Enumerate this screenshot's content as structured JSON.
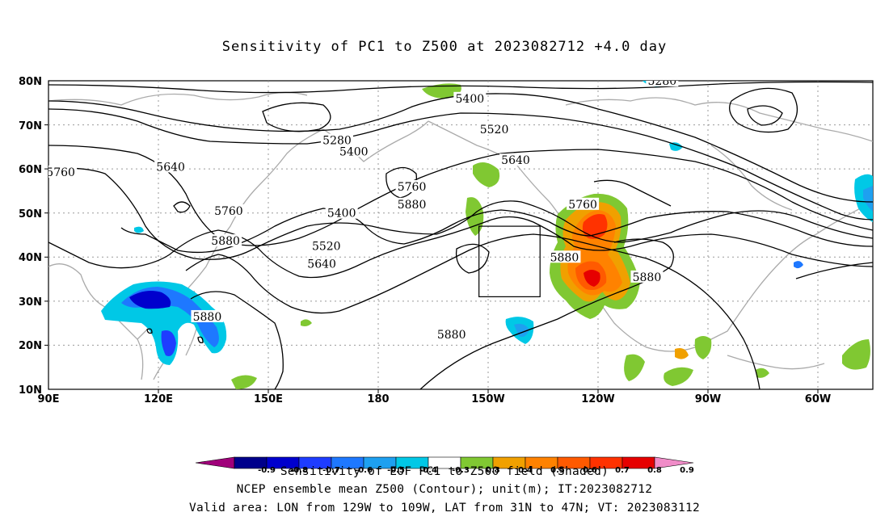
{
  "title": "Sensitivity of PC1 to Z500 at 2023082712 +4.0 day",
  "axes": {
    "lon_ticks": [
      "90E",
      "120E",
      "150E",
      "180",
      "150W",
      "120W",
      "90W",
      "60W"
    ],
    "lat_ticks": [
      "80N",
      "70N",
      "60N",
      "50N",
      "40N",
      "30N",
      "20N",
      "10N"
    ]
  },
  "contour_labels": [
    {
      "text": "5280",
      "lon": -175.5,
      "lat": 66.5
    },
    {
      "text": "5400",
      "lon": -170,
      "lat": 64.0
    },
    {
      "text": "5640",
      "lon": 130,
      "lat": 60.5
    },
    {
      "text": "5760",
      "lon": 94,
      "lat": 59.3
    },
    {
      "text": "5760",
      "lon": 149,
      "lat": 50.5
    },
    {
      "text": "5880",
      "lon": 148,
      "lat": 43.7
    },
    {
      "text": "5400",
      "lon": -174,
      "lat": 50.0
    },
    {
      "text": "5520",
      "lon": -179,
      "lat": 42.5
    },
    {
      "text": "5640",
      "lon": -180.5,
      "lat": 38.5
    },
    {
      "text": "5880",
      "lon": 142,
      "lat": 26.5
    },
    {
      "text": "5400",
      "lon": -132,
      "lat": 76.0
    },
    {
      "text": "5520",
      "lon": -124,
      "lat": 69.0
    },
    {
      "text": "5640",
      "lon": -117,
      "lat": 62.0
    },
    {
      "text": "5760",
      "lon": -151,
      "lat": 56.0
    },
    {
      "text": "5880",
      "lon": -151,
      "lat": 52.0
    },
    {
      "text": "5760",
      "lon": -95,
      "lat": 52.0
    },
    {
      "text": "5880",
      "lon": -101,
      "lat": 40.0
    },
    {
      "text": "5880",
      "lon": -138,
      "lat": 22.5
    },
    {
      "text": "5880",
      "lon": -74,
      "lat": 35.5
    },
    {
      "text": "5280",
      "lon": -69,
      "lat": 80.0
    }
  ],
  "valid_box": {
    "lon_min": -129,
    "lon_max": -109,
    "lat_min": 31,
    "lat_max": 47
  },
  "colorbar": {
    "labels": [
      "-0.9",
      "-0.8",
      "-0.7",
      "-0.6",
      "-0.5",
      "-0.4",
      "-0.3",
      "0.3",
      "0.4",
      "0.5",
      "0.6",
      "0.7",
      "0.8",
      "0.9"
    ],
    "colors": [
      "#a0007a",
      "#00008b",
      "#0000cd",
      "#1e3cff",
      "#1e78ff",
      "#1ea0f0",
      "#00c8e6",
      "#ffffff",
      "#80c832",
      "#f0a000",
      "#ff8200",
      "#ff5a00",
      "#ff3200",
      "#e60000",
      "#f08cc8"
    ]
  },
  "footer": {
    "line1": "Sensitivity of EOF PC1 to Z500 field (Shaded)",
    "line2": "NCEP ensemble mean Z500 (Contour); unit(m); IT:2023082712",
    "line3": "Valid area: LON from 129W to 109W, LAT from 31N to 47N; VT: 2023083112"
  }
}
